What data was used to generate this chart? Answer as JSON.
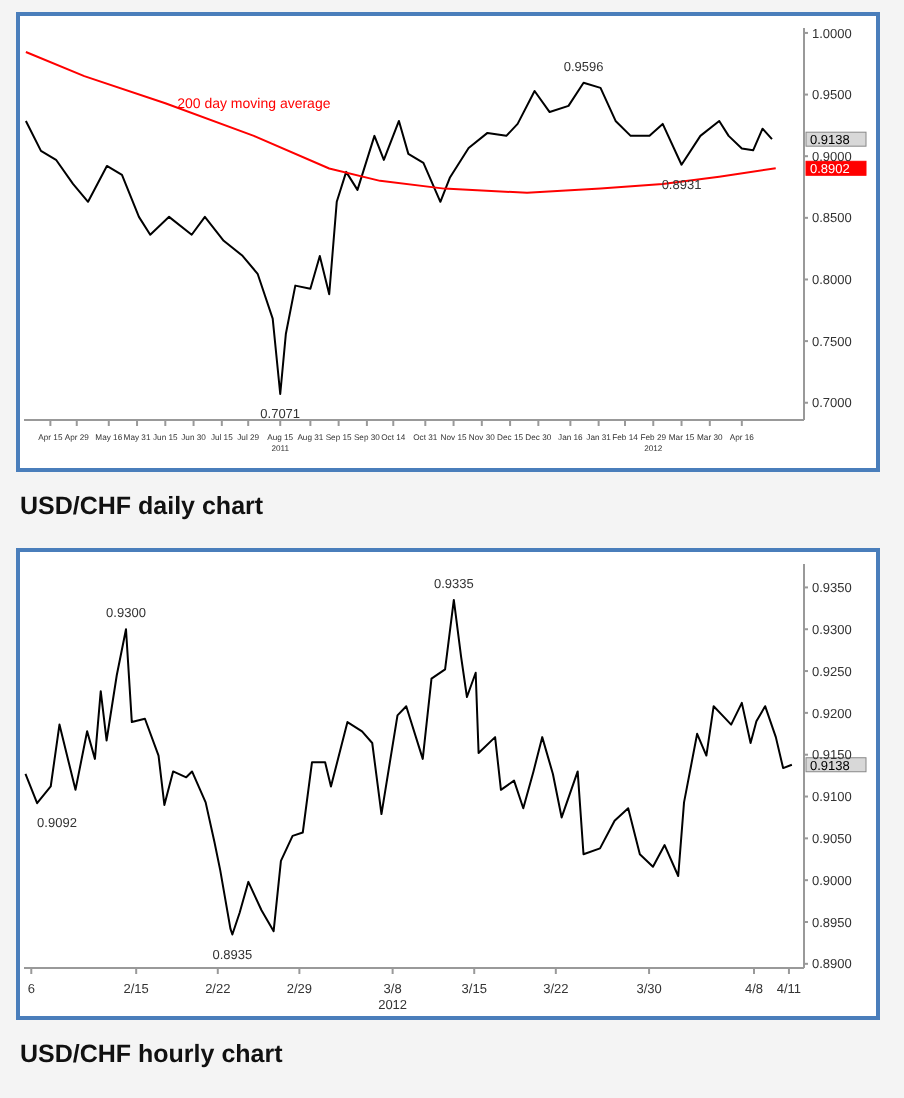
{
  "chart_data": [
    {
      "type": "line",
      "title": "USD/CHF daily chart",
      "marker": "none",
      "xlim": [
        "2011-04-01",
        "2012-05-19"
      ],
      "ylim": [
        0.686,
        1.004
      ],
      "yticks": [
        {
          "value": 0.7,
          "label": "0.7000"
        },
        {
          "value": 0.75,
          "label": "0.7500"
        },
        {
          "value": 0.8,
          "label": "0.8000"
        },
        {
          "value": 0.85,
          "label": "0.8500"
        },
        {
          "value": 0.9,
          "label": "0.9000"
        },
        {
          "value": 0.95,
          "label": "0.9500"
        },
        {
          "value": 1,
          "label": "1.0000"
        }
      ],
      "xticks": [
        {
          "value": "2011-04-15",
          "label": "Apr 15"
        },
        {
          "value": "2011-04-29",
          "label": "Apr 29"
        },
        {
          "value": "2011-05-16",
          "label": "May 16"
        },
        {
          "value": "2011-05-31",
          "label": "May 31"
        },
        {
          "value": "2011-06-15",
          "label": "Jun 15"
        },
        {
          "value": "2011-06-30",
          "label": "Jun 30"
        },
        {
          "value": "2011-07-15",
          "label": "Jul 15"
        },
        {
          "value": "2011-07-29",
          "label": "Jul 29"
        },
        {
          "value": "2011-08-15",
          "label": "Aug 15\n2011"
        },
        {
          "value": "2011-08-31",
          "label": "Aug 31"
        },
        {
          "value": "2011-09-15",
          "label": "Sep 15"
        },
        {
          "value": "2011-09-30",
          "label": "Sep 30"
        },
        {
          "value": "2011-10-14",
          "label": "Oct 14"
        },
        {
          "value": "2011-10-31",
          "label": "Oct 31"
        },
        {
          "value": "2011-11-15",
          "label": "Nov 15"
        },
        {
          "value": "2011-11-30",
          "label": "Nov 30"
        },
        {
          "value": "2011-12-15",
          "label": "Dec 15"
        },
        {
          "value": "2011-12-30",
          "label": "Dec 30"
        },
        {
          "value": "2012-01-16",
          "label": "Jan 16"
        },
        {
          "value": "2012-01-31",
          "label": "Jan 31"
        },
        {
          "value": "2012-02-14",
          "label": "Feb 14"
        },
        {
          "value": "2012-02-29",
          "label": "Feb 29\n2012"
        },
        {
          "value": "2012-03-15",
          "label": "Mar 15"
        },
        {
          "value": "2012-03-30",
          "label": "Mar 30"
        },
        {
          "value": "2012-04-16",
          "label": "Apr 16"
        }
      ],
      "series": [
        {
          "color": "#000000",
          "x": [
            "2011-04-02",
            "2011-04-10",
            "2011-04-18",
            "2011-04-27",
            "2011-05-05",
            "2011-05-15",
            "2011-05-23",
            "2011-06-01",
            "2011-06-07",
            "2011-06-17",
            "2011-06-29",
            "2011-07-06",
            "2011-07-16",
            "2011-07-26",
            "2011-08-03",
            "2011-08-11",
            "2011-08-15",
            "2011-08-18",
            "2011-08-23",
            "2011-08-31",
            "2011-09-05",
            "2011-09-10",
            "2011-09-14",
            "2011-09-19",
            "2011-09-25",
            "2011-10-04",
            "2011-10-09",
            "2011-10-17",
            "2011-10-22",
            "2011-10-30",
            "2011-11-08",
            "2011-11-13",
            "2011-11-23",
            "2011-12-03",
            "2011-12-13",
            "2011-12-19",
            "2011-12-28",
            "2012-01-05",
            "2012-01-15",
            "2012-01-23",
            "2012-02-01",
            "2012-02-09",
            "2012-02-17",
            "2012-02-27",
            "2012-03-05",
            "2012-03-15",
            "2012-03-25",
            "2012-04-04",
            "2012-04-09",
            "2012-04-16",
            "2012-04-22",
            "2012-04-27",
            "2012-05-02"
          ],
          "values": [
            0.9286,
            0.9043,
            0.8971,
            0.8775,
            0.863,
            0.8921,
            0.8848,
            0.8508,
            0.8363,
            0.8508,
            0.8363,
            0.8508,
            0.8314,
            0.8192,
            0.8046,
            0.7682,
            0.7071,
            0.756,
            0.795,
            0.7925,
            0.819,
            0.788,
            0.863,
            0.8873,
            0.8727,
            0.9165,
            0.897,
            0.9286,
            0.9019,
            0.8946,
            0.863,
            0.8825,
            0.9067,
            0.9189,
            0.9165,
            0.9262,
            0.9529,
            0.9358,
            0.9408,
            0.9596,
            0.9554,
            0.9286,
            0.9165,
            0.9165,
            0.9262,
            0.8931,
            0.9165,
            0.9286,
            0.9165,
            0.9062,
            0.9048,
            0.9223,
            0.9138
          ]
        },
        {
          "name": "200 day moving average",
          "color": "#ff0000",
          "x": [
            "2011-04-02",
            "2011-05-03",
            "2011-06-15",
            "2011-08-01",
            "2011-09-10",
            "2011-10-07",
            "2011-11-10",
            "2011-12-24",
            "2012-02-01",
            "2012-03-05",
            "2012-04-04",
            "2012-05-04"
          ],
          "values": [
            0.9845,
            0.965,
            0.943,
            0.9165,
            0.89,
            0.88,
            0.8737,
            0.8703,
            0.8737,
            0.8775,
            0.8834,
            0.8902
          ]
        }
      ],
      "annotations": [
        {
          "text": "0.9596",
          "x": "2012-01-23",
          "y": 0.9596
        },
        {
          "text": "0.7071",
          "x": "2011-08-15",
          "y": 0.7071
        },
        {
          "text": "0.8931",
          "x": "2012-03-15",
          "y": 0.8931
        },
        {
          "text": "0.9138",
          "x": "2012-05-02",
          "y": 0.9138
        },
        {
          "text": "0.8902",
          "x": "2012-05-04",
          "y": 0.8902
        }
      ]
    },
    {
      "type": "line",
      "title": "USD/CHF hourly chart",
      "marker": "none",
      "xlim": [
        "2012-02-05T09:00",
        "2012-04-12T07:00"
      ],
      "ylim": [
        0.8895,
        0.9378
      ],
      "yticks": [
        {
          "value": 0.89,
          "label": "0.8900"
        },
        {
          "value": 0.895,
          "label": "0.8950"
        },
        {
          "value": 0.9,
          "label": "0.9000"
        },
        {
          "value": 0.905,
          "label": "0.9050"
        },
        {
          "value": 0.91,
          "label": "0.9100"
        },
        {
          "value": 0.915,
          "label": "0.9150"
        },
        {
          "value": 0.92,
          "label": "0.9200"
        },
        {
          "value": 0.925,
          "label": "0.9250"
        },
        {
          "value": 0.93,
          "label": "0.9300"
        },
        {
          "value": 0.935,
          "label": "0.9350"
        }
      ],
      "xticks": [
        {
          "value": "2012-02-06",
          "label": "6"
        },
        {
          "value": "2012-02-15",
          "label": "2/15"
        },
        {
          "value": "2012-02-22",
          "label": "2/22"
        },
        {
          "value": "2012-02-29",
          "label": "2/29"
        },
        {
          "value": "2012-03-08",
          "label": "3/8\n2012"
        },
        {
          "value": "2012-03-15",
          "label": "3/15"
        },
        {
          "value": "2012-03-22",
          "label": "3/22"
        },
        {
          "value": "2012-03-30",
          "label": "3/30"
        },
        {
          "value": "2012-04-08",
          "label": "4/8"
        },
        {
          "value": "2012-04-11",
          "label": "4/11"
        }
      ],
      "series": [
        {
          "color": "#000000",
          "x": [
            "2012-02-05T12:00",
            "2012-02-06T12:00",
            "2012-02-07T16:00",
            "2012-02-08T10:00",
            "2012-02-09T19:00",
            "2012-02-10T19:00",
            "2012-02-11T11:00",
            "2012-02-11T23:00",
            "2012-02-12T11:00",
            "2012-02-13T08:00",
            "2012-02-14T03:00",
            "2012-02-14T15:00",
            "2012-02-15T18:00",
            "2012-02-16T22:00",
            "2012-02-17T10:00",
            "2012-02-18T04:00",
            "2012-02-19T07:00",
            "2012-02-19T19:00",
            "2012-02-20T23:00",
            "2012-02-21T17:00",
            "2012-02-22T05:00",
            "2012-02-23T02:00",
            "2012-02-23T06:00",
            "2012-02-23T21:00",
            "2012-02-24T15:00",
            "2012-02-25T18:00",
            "2012-02-26T19:00",
            "2012-02-27T10:00",
            "2012-02-28T10:00",
            "2012-02-29T07:00",
            "2012-03-01T02:00",
            "2012-03-02T05:00",
            "2012-03-02T17:00",
            "2012-03-04T03:00",
            "2012-03-05T09:00",
            "2012-03-06T06:00",
            "2012-03-07T01:00",
            "2012-03-08T10:00",
            "2012-03-09T04:00",
            "2012-03-10T14:00",
            "2012-03-11T08:00",
            "2012-03-12T12:00",
            "2012-03-13T06:00",
            "2012-03-13T21:00",
            "2012-03-14T09:00",
            "2012-03-15T03:00",
            "2012-03-15T09:00",
            "2012-03-16T19:00",
            "2012-03-17T07:00",
            "2012-03-18T10:00",
            "2012-03-19T05:00",
            "2012-03-20T02:00",
            "2012-03-20T20:00",
            "2012-03-21T18:00",
            "2012-03-22T12:00",
            "2012-03-23T21:00",
            "2012-03-24T09:00",
            "2012-03-25T19:00",
            "2012-03-27T01:00",
            "2012-03-28T05:00",
            "2012-03-29T05:00",
            "2012-03-30T08:00",
            "2012-03-31T08:00",
            "2012-04-01T12:00",
            "2012-04-02T00:00",
            "2012-04-03T03:00",
            "2012-04-03T22:00",
            "2012-04-04T13:00",
            "2012-04-05T07:00",
            "2012-04-06T01:00",
            "2012-04-06T23:00",
            "2012-04-07T17:00",
            "2012-04-08T05:00",
            "2012-04-08T23:00",
            "2012-04-09T21:00",
            "2012-04-10T12:00",
            "2012-04-11T06:00"
          ],
          "values": [
            0.9127,
            0.9092,
            0.9112,
            0.9186,
            0.9108,
            0.9178,
            0.9145,
            0.9226,
            0.9167,
            0.9245,
            0.93,
            0.9189,
            0.9193,
            0.9149,
            0.909,
            0.913,
            0.9123,
            0.913,
            0.9093,
            0.9046,
            0.9012,
            0.8942,
            0.8935,
            0.8961,
            0.8998,
            0.8964,
            0.8939,
            0.9023,
            0.9053,
            0.9057,
            0.9141,
            0.9141,
            0.9112,
            0.9189,
            0.9178,
            0.9164,
            0.9079,
            0.9197,
            0.9208,
            0.9145,
            0.9241,
            0.9252,
            0.9335,
            0.9267,
            0.9219,
            0.9248,
            0.9152,
            0.9171,
            0.9108,
            0.9119,
            0.9086,
            0.913,
            0.9171,
            0.9127,
            0.9075,
            0.913,
            0.9031,
            0.9038,
            0.9071,
            0.9086,
            0.9031,
            0.9016,
            0.9042,
            0.9005,
            0.9093,
            0.9175,
            0.9149,
            0.9208,
            0.9197,
            0.9186,
            0.9212,
            0.9164,
            0.919,
            0.9208,
            0.9171,
            0.9134,
            0.9138
          ]
        }
      ],
      "annotations": [
        {
          "text": "0.9092",
          "x": "2012-02-06T12:00",
          "y": 0.9092
        },
        {
          "text": "0.9300",
          "x": "2012-02-14T03:00",
          "y": 0.93
        },
        {
          "text": "0.8935",
          "x": "2012-02-23T06:00",
          "y": 0.8935
        },
        {
          "text": "0.9335",
          "x": "2012-03-13T06:00",
          "y": 0.9335
        },
        {
          "text": "0.9138",
          "x": "2012-04-11T06:00",
          "y": 0.9138
        }
      ]
    }
  ]
}
